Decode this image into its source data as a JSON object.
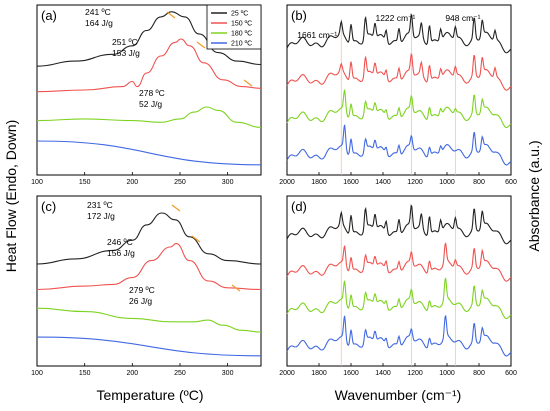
{
  "figure": {
    "ylabel_left": "Heat Flow (Endo, Down)",
    "ylabel_right": "Absorbance (a.u.)",
    "xlabel_left": "Temperature (ºC)",
    "xlabel_right": "Wavenumber (cm⁻¹)"
  },
  "colors": {
    "s25": "#222222",
    "s150": "#ef5350",
    "s180": "#7ed321",
    "s210": "#4169e1",
    "arrow": "#f0a030",
    "guide": "#f5b8a0"
  },
  "chart_data": [
    {
      "panel": "(a)",
      "type": "line",
      "xlim": [
        100,
        335
      ],
      "xticks": [
        100,
        150,
        200,
        250,
        300
      ],
      "legend": {
        "placement": "top-right",
        "entries": [
          "25 ºC",
          "150 ºC",
          "180 ºC",
          "210 ºC"
        ]
      },
      "series": [
        {
          "name": "25 ºC",
          "color_key": "s25",
          "x": [
            100,
            140,
            180,
            200,
            215,
            230,
            241,
            255,
            270,
            290,
            310,
            335
          ],
          "y": [
            0.64,
            0.67,
            0.71,
            0.76,
            0.85,
            0.93,
            0.96,
            0.93,
            0.83,
            0.72,
            0.67,
            0.65
          ]
        },
        {
          "name": "150 ºC",
          "color_key": "s150",
          "x": [
            100,
            150,
            190,
            200,
            205,
            215,
            230,
            245,
            251,
            260,
            275,
            295,
            315,
            335
          ],
          "y": [
            0.49,
            0.5,
            0.52,
            0.55,
            0.52,
            0.6,
            0.7,
            0.78,
            0.8,
            0.76,
            0.66,
            0.56,
            0.52,
            0.51
          ]
        },
        {
          "name": "180 ºC",
          "color_key": "s180",
          "x": [
            100,
            150,
            200,
            230,
            250,
            265,
            278,
            290,
            310,
            335
          ],
          "y": [
            0.32,
            0.33,
            0.32,
            0.31,
            0.33,
            0.37,
            0.4,
            0.38,
            0.31,
            0.28
          ]
        },
        {
          "name": "210 ºC",
          "color_key": "s210",
          "x": [
            100,
            335
          ],
          "y": [
            0.2,
            0.06
          ]
        }
      ],
      "annotations": [
        {
          "text": [
            "241 ºC",
            "164 J/g"
          ],
          "x": 241
        },
        {
          "text": [
            "251 ºC",
            "153 J/g"
          ],
          "x": 251
        },
        {
          "text": [
            "278 ºC",
            "52 J/g"
          ],
          "x": 278
        }
      ]
    },
    {
      "panel": "(b)",
      "type": "line",
      "xlim": [
        2000,
        600
      ],
      "xticks": [
        2000,
        1800,
        1600,
        1400,
        1200,
        1000,
        800,
        600
      ],
      "guides": [
        1661,
        1222,
        948
      ],
      "annotations": [
        {
          "text": "1661 cm⁻¹",
          "x": 1661
        },
        {
          "text": "1222 cm⁻¹",
          "x": 1222
        },
        {
          "text": "948 cm⁻¹",
          "x": 948
        }
      ],
      "series": [
        {
          "name": "25 ºC",
          "color_key": "s25",
          "peaks": [
            [
              1661,
              0.5
            ],
            [
              1600,
              0.8
            ],
            [
              1510,
              0.9
            ],
            [
              1450,
              0.6
            ],
            [
              1380,
              0.5
            ],
            [
              1300,
              0.6
            ],
            [
              1222,
              0.9
            ],
            [
              1160,
              0.6
            ],
            [
              1110,
              0.8
            ],
            [
              1040,
              0.5
            ],
            [
              948,
              0.5
            ],
            [
              830,
              0.9
            ],
            [
              780,
              0.7
            ],
            [
              700,
              0.4
            ]
          ]
        },
        {
          "name": "150 ºC",
          "color_key": "s150",
          "peaks": [
            [
              1661,
              0.3
            ],
            [
              1600,
              0.8
            ],
            [
              1510,
              0.8
            ],
            [
              1450,
              0.5
            ],
            [
              1380,
              0.4
            ],
            [
              1300,
              0.5
            ],
            [
              1222,
              0.8
            ],
            [
              1160,
              0.5
            ],
            [
              1110,
              0.7
            ],
            [
              1040,
              0.4
            ],
            [
              948,
              0.4
            ],
            [
              830,
              0.9
            ],
            [
              780,
              0.7
            ],
            [
              700,
              0.4
            ]
          ]
        },
        {
          "name": "180 ºC",
          "color_key": "s180",
          "peaks": [
            [
              1640,
              0.9
            ],
            [
              1600,
              0.6
            ],
            [
              1510,
              0.5
            ],
            [
              1450,
              0.4
            ],
            [
              1380,
              0.3
            ],
            [
              1300,
              0.4
            ],
            [
              1222,
              0.6
            ],
            [
              1110,
              0.5
            ],
            [
              1040,
              0.3
            ],
            [
              948,
              0.2
            ],
            [
              830,
              0.8
            ],
            [
              780,
              0.5
            ]
          ]
        },
        {
          "name": "210 ºC",
          "color_key": "s210",
          "peaks": [
            [
              1640,
              1.0
            ],
            [
              1600,
              0.7
            ],
            [
              1510,
              0.5
            ],
            [
              1450,
              0.4
            ],
            [
              1380,
              0.3
            ],
            [
              1300,
              0.4
            ],
            [
              1222,
              0.5
            ],
            [
              1110,
              0.4
            ],
            [
              1040,
              0.3
            ],
            [
              830,
              0.8
            ],
            [
              780,
              0.5
            ]
          ]
        }
      ]
    },
    {
      "panel": "(c)",
      "type": "line",
      "xlim": [
        100,
        335
      ],
      "xticks": [
        100,
        150,
        200,
        250,
        300
      ],
      "series": [
        {
          "name": "25 ºC",
          "color_key": "s25",
          "x": [
            100,
            140,
            180,
            200,
            215,
            231,
            245,
            260,
            280,
            300,
            335
          ],
          "y": [
            0.6,
            0.63,
            0.68,
            0.74,
            0.83,
            0.9,
            0.86,
            0.76,
            0.66,
            0.62,
            0.6
          ]
        },
        {
          "name": "150 ºC",
          "color_key": "s150",
          "x": [
            100,
            150,
            180,
            200,
            220,
            240,
            246,
            260,
            280,
            300,
            335
          ],
          "y": [
            0.45,
            0.47,
            0.48,
            0.52,
            0.62,
            0.7,
            0.72,
            0.62,
            0.5,
            0.46,
            0.45
          ]
        },
        {
          "name": "180 ºC",
          "color_key": "s180",
          "x": [
            100,
            150,
            200,
            240,
            265,
            279,
            295,
            315,
            335
          ],
          "y": [
            0.34,
            0.32,
            0.28,
            0.26,
            0.26,
            0.27,
            0.24,
            0.21,
            0.2
          ]
        },
        {
          "name": "210 ºC",
          "color_key": "s210",
          "x": [
            100,
            335
          ],
          "y": [
            0.17,
            0.06
          ]
        }
      ],
      "annotations": [
        {
          "text": [
            "231 ºC",
            "172 J/g"
          ],
          "x": 231
        },
        {
          "text": [
            "246 ºC",
            "156 J/g"
          ],
          "x": 246
        },
        {
          "text": [
            "279 ºC",
            "26 J/g"
          ],
          "x": 279
        }
      ]
    },
    {
      "panel": "(d)",
      "type": "line",
      "xlim": [
        2000,
        600
      ],
      "xticks": [
        2000,
        1800,
        1600,
        1400,
        1200,
        1000,
        800,
        600
      ],
      "guides": [
        1661,
        1222,
        948
      ],
      "series": [
        {
          "name": "25 ºC",
          "color_key": "s25",
          "peaks": [
            [
              1661,
              0.5
            ],
            [
              1600,
              0.8
            ],
            [
              1510,
              0.9
            ],
            [
              1450,
              0.6
            ],
            [
              1380,
              0.5
            ],
            [
              1300,
              0.6
            ],
            [
              1222,
              0.9
            ],
            [
              1160,
              0.6
            ],
            [
              1110,
              0.8
            ],
            [
              1040,
              0.5
            ],
            [
              948,
              0.5
            ],
            [
              830,
              0.9
            ],
            [
              780,
              0.7
            ]
          ]
        },
        {
          "name": "150 ºC",
          "color_key": "s150",
          "peaks": [
            [
              1640,
              0.8
            ],
            [
              1600,
              0.6
            ],
            [
              1510,
              0.5
            ],
            [
              1450,
              0.4
            ],
            [
              1380,
              0.4
            ],
            [
              1300,
              0.4
            ],
            [
              1222,
              0.5
            ],
            [
              1110,
              0.5
            ],
            [
              1010,
              0.8
            ],
            [
              948,
              0.3
            ],
            [
              830,
              0.8
            ],
            [
              780,
              0.6
            ]
          ]
        },
        {
          "name": "180 ºC",
          "color_key": "s180",
          "peaks": [
            [
              1640,
              0.9
            ],
            [
              1600,
              0.6
            ],
            [
              1510,
              0.5
            ],
            [
              1450,
              0.4
            ],
            [
              1380,
              0.3
            ],
            [
              1300,
              0.4
            ],
            [
              1222,
              0.5
            ],
            [
              1110,
              0.4
            ],
            [
              1010,
              0.9
            ],
            [
              830,
              0.8
            ],
            [
              780,
              0.5
            ]
          ]
        },
        {
          "name": "210 ºC",
          "color_key": "s210",
          "peaks": [
            [
              1640,
              1.0
            ],
            [
              1600,
              0.7
            ],
            [
              1510,
              0.5
            ],
            [
              1450,
              0.4
            ],
            [
              1380,
              0.3
            ],
            [
              1300,
              0.4
            ],
            [
              1222,
              0.4
            ],
            [
              1110,
              0.4
            ],
            [
              1010,
              0.9
            ],
            [
              830,
              0.8
            ],
            [
              780,
              0.5
            ]
          ]
        }
      ]
    }
  ]
}
